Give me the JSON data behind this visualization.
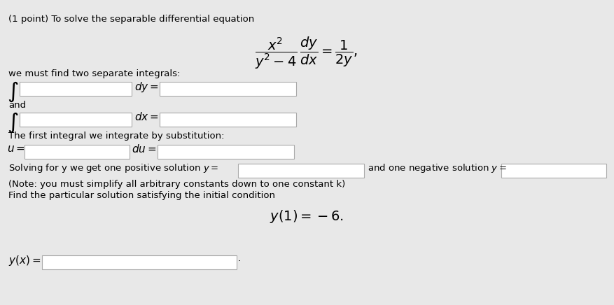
{
  "bg_color": "#e8e8e8",
  "box_color": "#ffffff",
  "box_edge_color": "#aaaaaa",
  "text_color": "#000000",
  "title": "(1 point) To solve the separable differential equation",
  "main_eq": "$\\dfrac{x^2}{y^2 - 4}\\,\\dfrac{dy}{dx} = \\dfrac{1}{2y},$",
  "line2": "we must find two separate integrals:",
  "integral_sign": "$\\int$",
  "dy_label": "$dy =$",
  "dx_label": "$dx =$",
  "and_label": "and",
  "sub_label": "The first integral we integrate by substitution:",
  "u_label": "$u =$",
  "du_label": "$du =$",
  "solve_label": "Solving for y we get one positive solution $y =$",
  "and_neg_label": "and one negative solution $y =$",
  "note_label": "(Note: you must simplify all arbitrary constants down to one constant k)",
  "find_label": "Find the particular solution satisfying the initial condition",
  "initial_cond": "$y(1) = -6.$",
  "yx_label": "$y(x) =$",
  "period": "."
}
